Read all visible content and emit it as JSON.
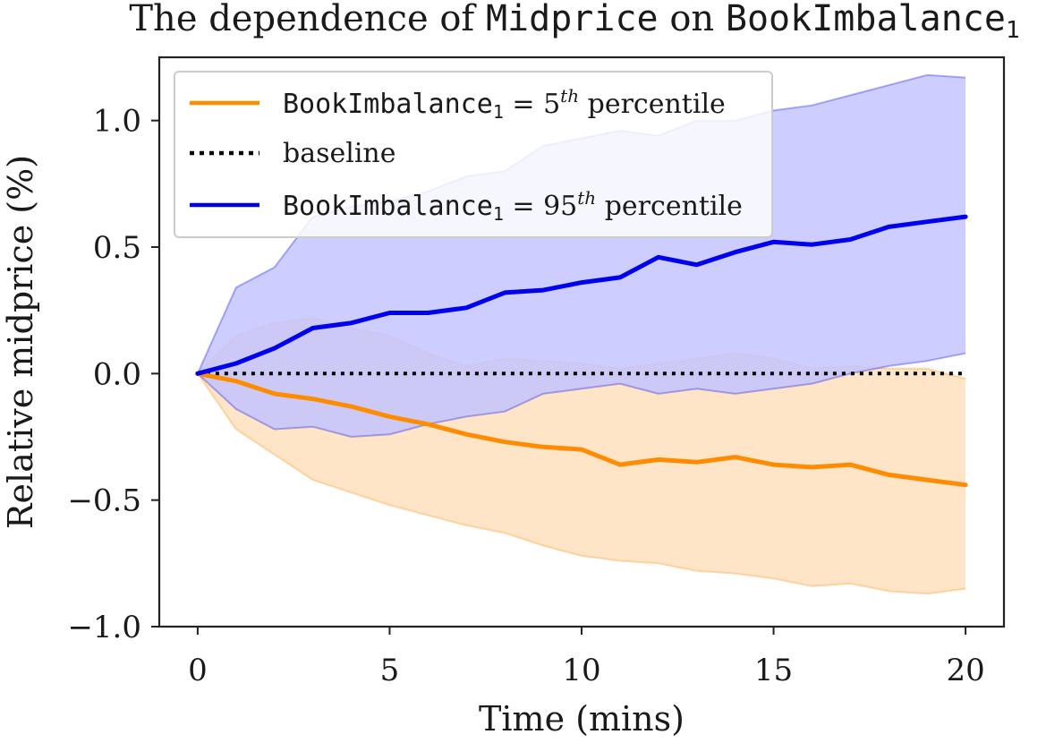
{
  "chart_data": {
    "type": "line",
    "title": {
      "prefix": "The dependence of ",
      "code1": "Midprice",
      "middle": " on ",
      "code2": "BookImbalance",
      "subscript": "1"
    },
    "xlabel": "Time (mins)",
    "ylabel": "Relative midprice (%)",
    "xlim": [
      -1,
      21
    ],
    "ylim": [
      -1.0,
      1.25
    ],
    "xticks": [
      0,
      5,
      10,
      15,
      20
    ],
    "xtick_labels": [
      "0",
      "5",
      "10",
      "15",
      "20"
    ],
    "yticks": [
      -1.0,
      -0.5,
      0.0,
      0.5,
      1.0
    ],
    "ytick_labels": [
      "−1.0",
      "−0.5",
      "0.0",
      "0.5",
      "1.0"
    ],
    "grid": false,
    "legend_position": "top-left",
    "colors": {
      "p5": "#ff8c00",
      "p95": "#0000ee",
      "baseline": "#000000",
      "p5_band": "#ffe0be",
      "p95_band": "#c4c4ff"
    },
    "legend": [
      {
        "key": "p5",
        "code": "BookImbalance",
        "sub": "1",
        "rel": " = ",
        "num": "5",
        "sup": "th",
        "tail": " percentile"
      },
      {
        "key": "baseline",
        "text": "baseline"
      },
      {
        "key": "p95",
        "code": "BookImbalance",
        "sub": "1",
        "rel": " = ",
        "num": "95",
        "sup": "th",
        "tail": " percentile"
      }
    ],
    "x": [
      0,
      1,
      2,
      3,
      4,
      5,
      6,
      7,
      8,
      9,
      10,
      11,
      12,
      13,
      14,
      15,
      16,
      17,
      18,
      19,
      20
    ],
    "series": [
      {
        "key": "p5",
        "name": "BookImbalance₁ = 5th percentile",
        "values": [
          0.0,
          -0.03,
          -0.08,
          -0.1,
          -0.13,
          -0.17,
          -0.2,
          -0.24,
          -0.27,
          -0.29,
          -0.3,
          -0.36,
          -0.34,
          -0.35,
          -0.33,
          -0.36,
          -0.37,
          -0.36,
          -0.4,
          -0.42,
          -0.44
        ],
        "lower": [
          0.0,
          -0.22,
          -0.32,
          -0.42,
          -0.47,
          -0.52,
          -0.56,
          -0.6,
          -0.63,
          -0.68,
          -0.72,
          -0.74,
          -0.75,
          -0.78,
          -0.79,
          -0.81,
          -0.84,
          -0.83,
          -0.86,
          -0.87,
          -0.85
        ],
        "upper": [
          0.0,
          0.15,
          0.2,
          0.22,
          0.18,
          0.15,
          0.08,
          0.03,
          0.06,
          0.05,
          0.04,
          0.02,
          0.04,
          0.06,
          0.08,
          0.06,
          0.02,
          0.03,
          0.02,
          0.02,
          -0.02
        ]
      },
      {
        "key": "p95",
        "name": "BookImbalance₁ = 95th percentile",
        "values": [
          0.0,
          0.04,
          0.1,
          0.18,
          0.2,
          0.24,
          0.24,
          0.26,
          0.32,
          0.33,
          0.36,
          0.38,
          0.46,
          0.43,
          0.48,
          0.52,
          0.51,
          0.53,
          0.58,
          0.6,
          0.62
        ],
        "lower": [
          0.0,
          -0.14,
          -0.22,
          -0.21,
          -0.25,
          -0.24,
          -0.2,
          -0.17,
          -0.15,
          -0.08,
          -0.06,
          -0.04,
          -0.08,
          -0.06,
          -0.08,
          -0.06,
          -0.04,
          0.0,
          0.03,
          0.05,
          0.08
        ],
        "upper": [
          0.0,
          0.34,
          0.42,
          0.62,
          0.66,
          0.68,
          0.72,
          0.78,
          0.8,
          0.9,
          0.93,
          0.96,
          0.94,
          1.0,
          1.0,
          1.04,
          1.06,
          1.1,
          1.14,
          1.18,
          1.17
        ]
      },
      {
        "key": "baseline",
        "name": "baseline",
        "values": [
          0,
          0,
          0,
          0,
          0,
          0,
          0,
          0,
          0,
          0,
          0,
          0,
          0,
          0,
          0,
          0,
          0,
          0,
          0,
          0,
          0
        ]
      }
    ]
  }
}
